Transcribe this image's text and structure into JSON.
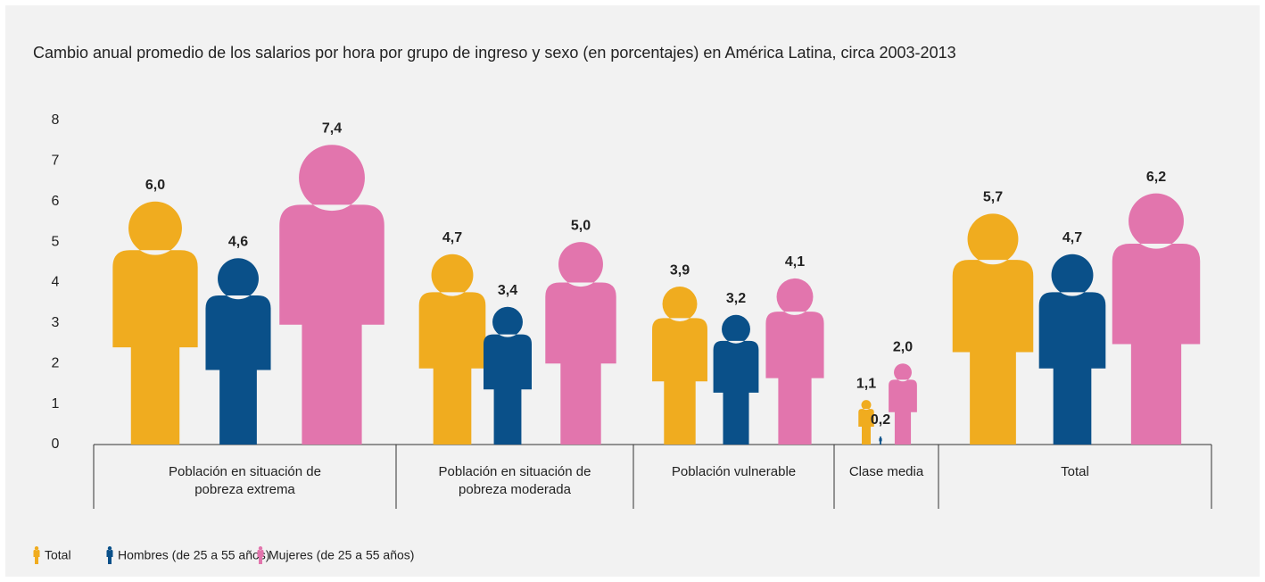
{
  "chart_data": {
    "type": "pictogram_bar",
    "title": "Cambio anual promedio de los salarios por hora por grupo de ingreso y sexo (en porcentajes) en América Latina, circa 2003-2013",
    "categories": [
      "Población en situación de pobreza extrema",
      "Población en situación de pobreza moderada",
      "Población vulnerable",
      "Clase media",
      "Total"
    ],
    "series": [
      {
        "name": "Total",
        "color": "#f0ac1f",
        "values": [
          6.0,
          4.7,
          3.9,
          1.1,
          5.7
        ],
        "value_labels": [
          "6,0",
          "4,7",
          "3,9",
          "1,1",
          "5,7"
        ]
      },
      {
        "name": "Hombres (de 25 a 55 años)",
        "color": "#0a5089",
        "values": [
          4.6,
          3.4,
          3.2,
          0.2,
          4.7
        ],
        "value_labels": [
          "4,6",
          "3,4",
          "3,2",
          "0,2",
          "4,7"
        ]
      },
      {
        "name": "Mujeres (de 25 a 55 años)",
        "color": "#e275ad",
        "values": [
          7.4,
          5.0,
          4.1,
          2.0,
          6.2
        ],
        "value_labels": [
          "7,4",
          "5,0",
          "4,1",
          "2,0",
          "6,2"
        ]
      }
    ],
    "ylim": [
      0,
      8
    ],
    "yticks": [
      0,
      1,
      2,
      3,
      4,
      5,
      6,
      7,
      8
    ],
    "grid": false
  }
}
